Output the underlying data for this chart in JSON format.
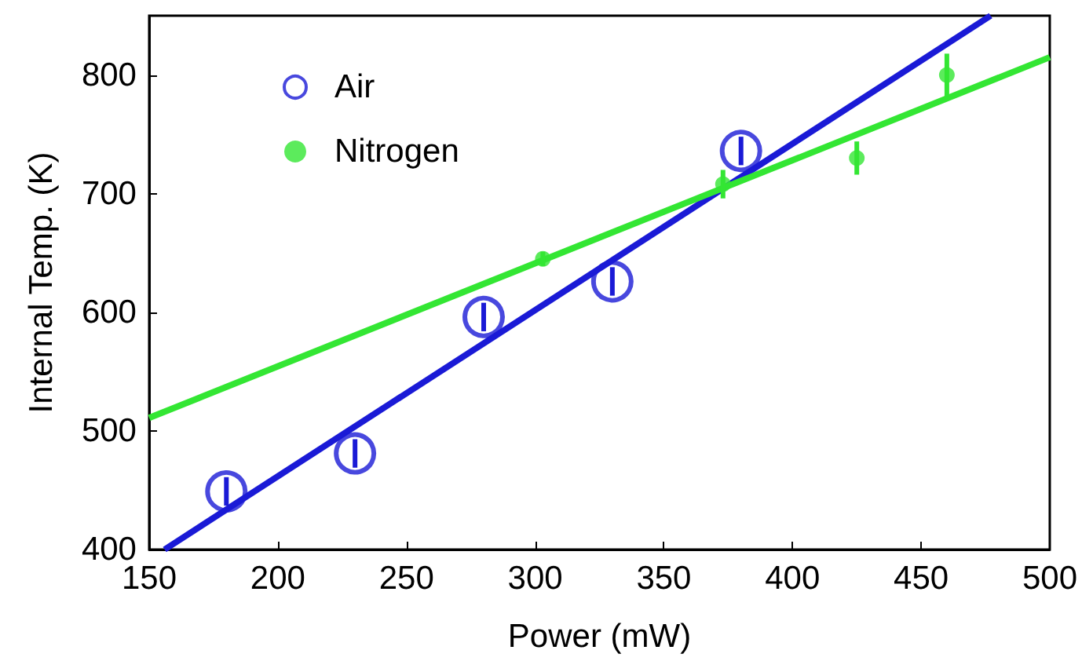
{
  "chart_data": {
    "type": "scatter",
    "xlabel": "Power (mW)",
    "ylabel": "Internal Temp. (K)",
    "xlim": [
      150,
      500
    ],
    "ylim": [
      400,
      850
    ],
    "xticks": [
      150,
      200,
      250,
      300,
      350,
      400,
      450,
      500
    ],
    "yticks": [
      400,
      500,
      600,
      700,
      800
    ],
    "grid": false,
    "legend": "top left",
    "marker": "circle",
    "series": [
      {
        "name": "Air",
        "color": "#1a1ad6",
        "x": [
          180,
          230,
          280,
          330,
          380
        ],
        "values": [
          449,
          481,
          596,
          626,
          736
        ],
        "errors": [
          12,
          12,
          12,
          12,
          12
        ]
      },
      {
        "name": "Nitrogen",
        "color": "#33e633",
        "x": [
          303,
          373,
          425,
          460
        ],
        "values": [
          645,
          708,
          730,
          800
        ],
        "errors": [
          6,
          12,
          14,
          18
        ]
      },
      {
        "type": "line",
        "marker": "none",
        "color": "#1a1ad6",
        "x": [
          156,
          477
        ],
        "values": [
          400,
          850
        ]
      },
      {
        "type": "line",
        "marker": "none",
        "color": "#33e633",
        "x": [
          150,
          500
        ],
        "values": [
          511,
          815
        ]
      }
    ]
  }
}
